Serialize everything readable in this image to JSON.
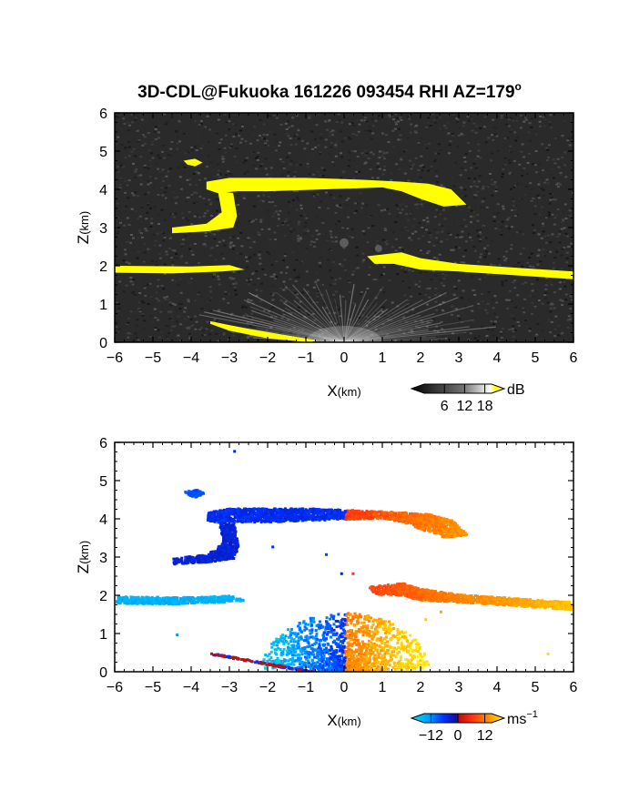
{
  "title": "3D-CDL@Fukuoka 161226 093454 RHI AZ=179",
  "title_superscript": "o",
  "chart_data": [
    {
      "type": "heatmap",
      "name": "snr",
      "xlabel_main": "X",
      "xlabel_unit": "(km)",
      "ylabel_main": "Z",
      "ylabel_unit": "(km)",
      "xlim": [
        -6,
        6
      ],
      "ylim": [
        0,
        6
      ],
      "x_ticks": [
        "−6",
        "−5",
        "−4",
        "−3",
        "−2",
        "−1",
        "0",
        "1",
        "2",
        "3",
        "4",
        "5",
        "6"
      ],
      "y_ticks": [
        "0",
        "1",
        "2",
        "3",
        "4",
        "5",
        "6"
      ],
      "colorbar": {
        "unit": "dB",
        "ticks": [
          "6",
          "12",
          "18"
        ],
        "tick_values": [
          6,
          12,
          18
        ],
        "range": [
          0,
          20
        ]
      },
      "colors": {
        "background": "#2a2a2a",
        "strong_echo": "#ffff00",
        "near_field": "#d8d8d8"
      },
      "features": [
        {
          "label": "upper layer",
          "x": [
            -3.6,
            3.2
          ],
          "z": [
            3.6,
            4.3
          ]
        },
        {
          "label": "hanging lobe",
          "x": [
            -4.5,
            -2.8
          ],
          "z": [
            2.8,
            3.7
          ]
        },
        {
          "label": "small cloud",
          "x": [
            -4.2,
            -3.7
          ],
          "z": [
            4.6,
            4.8
          ]
        },
        {
          "label": "lower-left layer",
          "x": [
            -6.0,
            -2.6
          ],
          "z": [
            1.8,
            2.0
          ]
        },
        {
          "label": "lower-right layer",
          "x": [
            0.6,
            6.0
          ],
          "z": [
            1.6,
            2.4
          ]
        },
        {
          "label": "surface echo",
          "x": [
            -3.5,
            -0.7
          ],
          "z": [
            0.0,
            0.5
          ]
        }
      ]
    },
    {
      "type": "heatmap",
      "name": "doppler_velocity",
      "xlabel_main": "X",
      "xlabel_unit": "(km)",
      "ylabel_main": "Z",
      "ylabel_unit": "(km)",
      "xlim": [
        -6,
        6
      ],
      "ylim": [
        0,
        6
      ],
      "x_ticks": [
        "−6",
        "−5",
        "−4",
        "−3",
        "−2",
        "−1",
        "0",
        "1",
        "2",
        "3",
        "4",
        "5",
        "6"
      ],
      "y_ticks": [
        "0",
        "1",
        "2",
        "3",
        "4",
        "5",
        "6"
      ],
      "colorbar": {
        "unit": "ms",
        "unit_superscript": "−1",
        "ticks": [
          "−12",
          "0",
          "12"
        ],
        "tick_values": [
          -12,
          0,
          12
        ],
        "range": [
          -15,
          15
        ]
      },
      "colors": {
        "stops": [
          "#00e0e0",
          "#00a0ff",
          "#0030ff",
          "#1010a0",
          "#c01010",
          "#ff3010",
          "#ff8000",
          "#ffc000",
          "#ffff00"
        ]
      },
      "features": [
        {
          "label": "upper layer west",
          "x": [
            -3.6,
            0.0
          ],
          "z": [
            3.7,
            4.3
          ],
          "velocity": -8
        },
        {
          "label": "upper layer east",
          "x": [
            0.0,
            2.6
          ],
          "z": [
            3.5,
            4.2
          ],
          "velocity": 5
        },
        {
          "label": "hanging lobe",
          "x": [
            -4.5,
            -2.8
          ],
          "z": [
            2.8,
            3.7
          ],
          "velocity": -7
        },
        {
          "label": "small cloud",
          "x": [
            -4.2,
            -3.7
          ],
          "z": [
            4.6,
            4.8
          ],
          "velocity": -9
        },
        {
          "label": "lower-left layer",
          "x": [
            -6.0,
            -2.6
          ],
          "z": [
            1.8,
            2.0
          ],
          "velocity": -13
        },
        {
          "label": "lower-right layer",
          "x": [
            0.6,
            6.0
          ],
          "z": [
            1.6,
            2.4
          ],
          "velocity": 8
        },
        {
          "label": "boundary layer west",
          "x": [
            -1.6,
            0.0
          ],
          "z": [
            0.0,
            1.5
          ],
          "velocity": -11
        },
        {
          "label": "boundary layer east",
          "x": [
            0.0,
            2.0
          ],
          "z": [
            0.0,
            1.6
          ],
          "velocity": 11
        }
      ]
    }
  ]
}
